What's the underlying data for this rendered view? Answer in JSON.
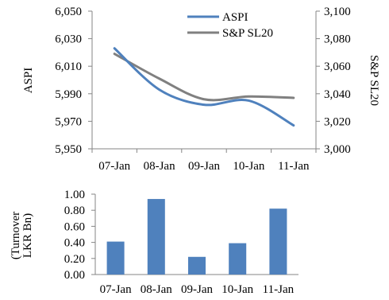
{
  "chart_data": [
    {
      "type": "line",
      "categories": [
        "07-Jan",
        "08-Jan",
        "09-Jan",
        "10-Jan",
        "11-Jan"
      ],
      "series": [
        {
          "name": "ASPI",
          "axis": "left",
          "color": "#4F81BD",
          "values": [
            6023,
            5993,
            5982,
            5985,
            5967
          ]
        },
        {
          "name": "S&P SL20",
          "axis": "right",
          "color": "#808080",
          "values": [
            3069,
            3051,
            3036,
            3038,
            3037
          ]
        }
      ],
      "ylabel": "ASPI",
      "y2label": "S&P SL20",
      "ylim": [
        5950,
        6050
      ],
      "y2lim": [
        3000,
        3100
      ],
      "yticks": [
        "5,950",
        "5,970",
        "5,990",
        "6,010",
        "6,030",
        "6,050"
      ],
      "y2ticks": [
        "3,000",
        "3,020",
        "3,040",
        "3,060",
        "3,080",
        "3,100"
      ],
      "legend": "top-right"
    },
    {
      "type": "bar",
      "categories": [
        "07-Jan",
        "08-Jan",
        "09-Jan",
        "10-Jan",
        "11-Jan"
      ],
      "values": [
        0.41,
        0.94,
        0.22,
        0.39,
        0.82
      ],
      "color": "#4F81BD",
      "ylabel_lines": [
        "(Turnover",
        "LKR Bn)"
      ],
      "ylim": [
        0,
        1
      ],
      "yticks": [
        "0.00",
        "0.20",
        "0.40",
        "0.60",
        "0.80",
        "1.00"
      ]
    }
  ]
}
